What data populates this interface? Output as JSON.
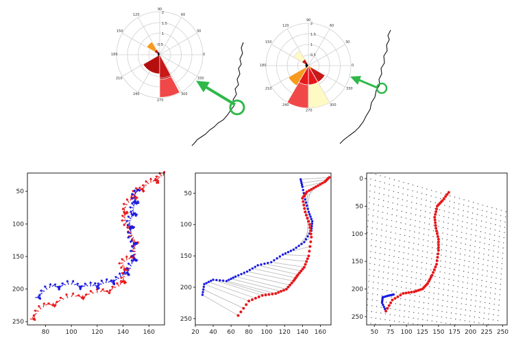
{
  "rose_left": {
    "angle_labels": [
      "90",
      "60",
      "30",
      "0",
      "330",
      "300",
      "270",
      "240",
      "210",
      "180",
      "150",
      "120"
    ],
    "radial_labels": [
      "2",
      "1.5",
      "1",
      "0.5"
    ]
  },
  "rose_right": {
    "angle_labels": [
      "90",
      "60",
      "30",
      "0",
      "330",
      "300",
      "270",
      "240",
      "210",
      "180",
      "150",
      "120"
    ],
    "radial_labels": [
      "2",
      "1.5",
      "1",
      "0.5"
    ]
  },
  "colors": {
    "arrow": "#2fb84a",
    "red": "#e8171a",
    "blue": "#1a1ae0",
    "dark_red": "#b40000",
    "light_red": "#ff5a5a",
    "orange": "#f79a1e",
    "pale_yellow": "#fff9c4"
  },
  "chart_data": [
    {
      "type": "line",
      "panel": "arrows",
      "x_ticks": [
        "80",
        "100",
        "120",
        "140",
        "160"
      ],
      "y_ticks": [
        "50",
        "100",
        "150",
        "200",
        "250"
      ],
      "xlim": [
        66,
        172
      ],
      "ylim": [
        255,
        22
      ],
      "series": [
        {
          "color": "red",
          "x": [
            68,
            80,
            100,
            120,
            137,
            142,
            140,
            150,
            148,
            143,
            140,
            148,
            152,
            163,
            171
          ],
          "y": [
            246,
            225,
            212,
            206,
            196,
            178,
            160,
            146,
            120,
            100,
            80,
            58,
            48,
            35,
            26
          ]
        },
        {
          "color": "blue",
          "x": [
            72,
            85,
            100,
            115,
            125,
            137,
            146,
            149,
            147,
            145,
            148,
            149,
            150
          ],
          "y": [
            213,
            196,
            193,
            196,
            192,
            184,
            168,
            146,
            122,
            100,
            83,
            66,
            50
          ]
        }
      ]
    },
    {
      "type": "scatter",
      "panel": "correspondences",
      "x_ticks": [
        "20",
        "40",
        "60",
        "80",
        "100",
        "120",
        "140",
        "160"
      ],
      "y_ticks": [
        "50",
        "100",
        "150",
        "200",
        "250"
      ],
      "xlim": [
        20,
        172
      ],
      "ylim": [
        260,
        18
      ],
      "series": [
        {
          "color": "red",
          "x": [
            68,
            80,
            95,
            110,
            122,
            130,
            135,
            142,
            147,
            150,
            148,
            143,
            140,
            145,
            155,
            165,
            170
          ],
          "y": [
            245,
            222,
            213,
            210,
            203,
            190,
            180,
            168,
            150,
            120,
            100,
            80,
            58,
            48,
            40,
            32,
            25
          ]
        },
        {
          "color": "blue",
          "x": [
            28,
            30,
            40,
            55,
            65,
            78,
            90,
            105,
            118,
            130,
            142,
            150,
            151,
            147,
            143,
            140,
            138
          ],
          "y": [
            212,
            195,
            188,
            190,
            183,
            175,
            165,
            160,
            148,
            140,
            128,
            110,
            95,
            80,
            60,
            40,
            28
          ]
        }
      ]
    },
    {
      "type": "scatter",
      "panel": "grid",
      "x_ticks": [
        "50",
        "75",
        "100",
        "125",
        "150",
        "175",
        "200",
        "225",
        "250"
      ],
      "y_ticks": [
        "0",
        "50",
        "100",
        "150",
        "200",
        "250"
      ],
      "xlim": [
        38,
        257
      ],
      "ylim": [
        265,
        -10
      ],
      "series": [
        {
          "color": "red",
          "x": [
            68,
            78,
            95,
            112,
            125,
            133,
            140,
            147,
            150,
            150,
            146,
            144,
            148,
            156,
            166
          ],
          "y": [
            240,
            220,
            208,
            205,
            200,
            190,
            175,
            155,
            130,
            110,
            90,
            70,
            50,
            40,
            25
          ]
        },
        {
          "color": "blue",
          "x": [
            68,
            62,
            63,
            72,
            80
          ],
          "y": [
            240,
            225,
            215,
            212,
            210
          ]
        }
      ]
    }
  ]
}
